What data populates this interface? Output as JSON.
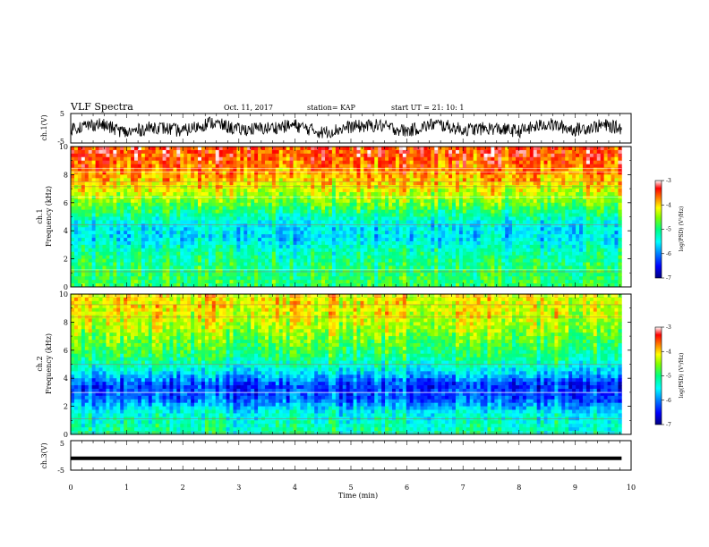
{
  "header": {
    "title": "VLF Spectra",
    "date": "Oct. 11, 2017",
    "station": "station= KAP",
    "start_ut": "start UT =  21: 10: 1"
  },
  "colorbar": {
    "label": "log(PSD) (V²/Hz)",
    "ticks": [
      "-3",
      "-4",
      "-5",
      "-6",
      "-7"
    ],
    "colormap": [
      "#000080",
      "#0000ff",
      "#0080ff",
      "#00ffff",
      "#00ff80",
      "#80ff00",
      "#ffff00",
      "#ff8000",
      "#ff0000",
      "#ffffff"
    ]
  },
  "chart_data": [
    {
      "type": "line",
      "panel": "ch1-waveform",
      "ylabel": "ch.1(V)",
      "ylim": [
        -5,
        5
      ],
      "yticks": [
        "5",
        "-5"
      ],
      "xlim": [
        0,
        9.83
      ],
      "x": [
        0,
        0.5,
        1.0,
        1.5,
        2.0,
        2.5,
        3.0,
        3.5,
        4.0,
        4.5,
        5.0,
        5.5,
        6.0,
        6.5,
        7.0,
        7.5,
        8.0,
        8.5,
        9.0,
        9.5,
        9.83
      ],
      "y": [
        0,
        1.5,
        -1.5,
        0.5,
        -1,
        2,
        -0.5,
        0,
        1,
        -1.5,
        0.5,
        1,
        -1,
        1.5,
        -0.5,
        0,
        -1,
        1.5,
        -0.5,
        1,
        0
      ]
    },
    {
      "type": "heatmap",
      "panel": "ch1-spectrogram",
      "ylabel": "ch.1 Frequency (kHz)",
      "ylim": [
        0,
        10
      ],
      "yticks": [
        "0",
        "2",
        "4",
        "6",
        "8",
        "10"
      ],
      "freq_kHz": [
        0.5,
        1.5,
        2.5,
        3.5,
        4.5,
        5.5,
        6.5,
        7.5,
        8.5,
        9.5
      ],
      "log_psd": [
        -4.9,
        -5.0,
        -5.2,
        -5.6,
        -5.5,
        -4.9,
        -4.4,
        -4.0,
        -3.7,
        -3.5
      ]
    },
    {
      "type": "heatmap",
      "panel": "ch2-spectrogram",
      "ylabel": "ch.2 Frequency (kHz)",
      "ylim": [
        0,
        10
      ],
      "yticks": [
        "0",
        "2",
        "4",
        "6",
        "8",
        "10"
      ],
      "freq_kHz": [
        0.5,
        1.5,
        2.5,
        3.5,
        4.5,
        5.5,
        6.5,
        7.5,
        8.5,
        9.5
      ],
      "log_psd": [
        -5.2,
        -5.4,
        -6.1,
        -6.3,
        -5.5,
        -5.0,
        -4.7,
        -4.4,
        -4.2,
        -4.1
      ]
    },
    {
      "type": "line",
      "panel": "ch3-waveform",
      "ylabel": "ch.3(V)",
      "ylim": [
        -5,
        5
      ],
      "yticks": [
        "5",
        "-5"
      ],
      "xlim": [
        0,
        9.83
      ],
      "x": [
        0,
        9.83
      ],
      "y": [
        -1,
        -1
      ]
    }
  ],
  "xaxis": {
    "label": "Time (min)",
    "xlim": [
      0,
      10
    ],
    "ticks": [
      "0",
      "1",
      "2",
      "3",
      "4",
      "5",
      "6",
      "7",
      "8",
      "9",
      "10"
    ]
  }
}
